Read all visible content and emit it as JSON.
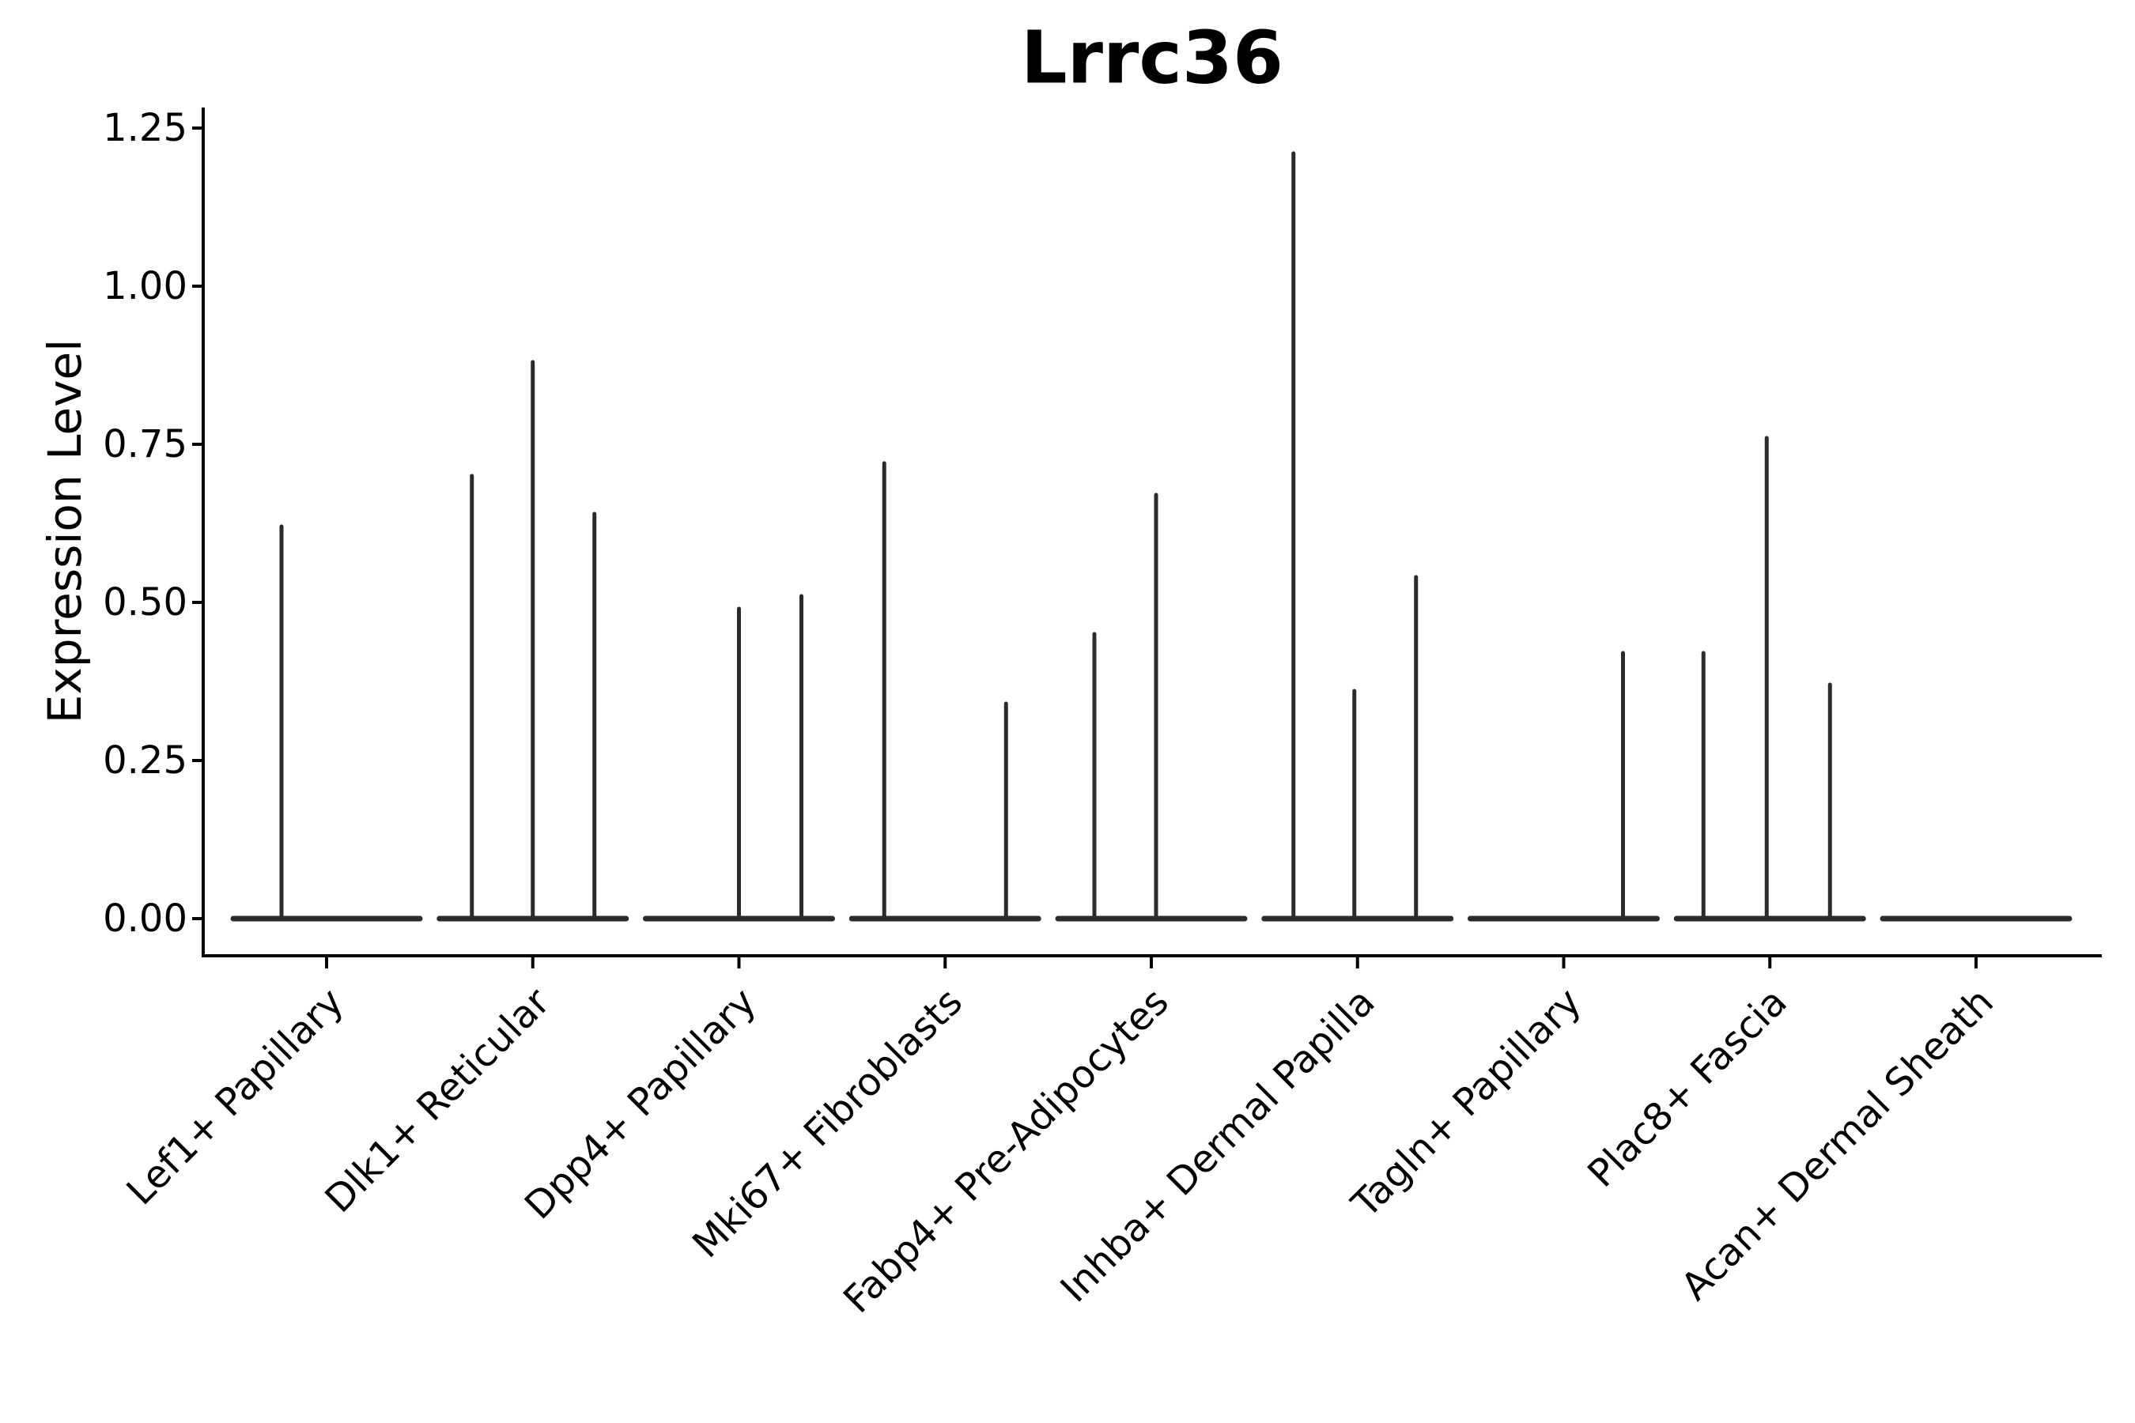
{
  "title": "Lrrc36",
  "y_axis_label": "Expression Level",
  "chart_data": {
    "type": "violin",
    "title": "Lrrc36",
    "xlabel": "",
    "ylabel": "Expression Level",
    "ylim": [
      0,
      1.28
    ],
    "yticks": [
      0.0,
      0.25,
      0.5,
      0.75,
      1.0,
      1.25
    ],
    "ytick_labels": [
      "0.00",
      "0.25",
      "0.50",
      "0.75",
      "1.00",
      "1.25"
    ],
    "grid": false,
    "legend": "none",
    "x_tick_rotation_deg": 45,
    "categories": [
      "Lef1+ Papillary",
      "Dlk1+ Reticular",
      "Dpp4+ Papillary",
      "Mki67+ Fibroblasts",
      "Fabp4+ Pre-Adipocytes",
      "Inhba+ Dermal Papilla",
      "Tagln+ Papillary",
      "Plac8+ Fascia",
      "Acan+ Dermal Sheath"
    ],
    "series": [
      {
        "category": "Lef1+ Papillary",
        "baseline_value": 0,
        "spikes": [
          {
            "offset": -57,
            "value": 0.62
          }
        ]
      },
      {
        "category": "Dlk1+ Reticular",
        "baseline_value": 0,
        "spikes": [
          {
            "offset": -77,
            "value": 0.7
          },
          {
            "offset": 0,
            "value": 0.88
          },
          {
            "offset": 78,
            "value": 0.64
          }
        ]
      },
      {
        "category": "Dpp4+ Papillary",
        "baseline_value": 0,
        "spikes": [
          {
            "offset": 0,
            "value": 0.49
          },
          {
            "offset": 79,
            "value": 0.51
          }
        ]
      },
      {
        "category": "Mki67+ Fibroblasts",
        "baseline_value": 0,
        "spikes": [
          {
            "offset": -77,
            "value": 0.72
          },
          {
            "offset": 77,
            "value": 0.34
          }
        ]
      },
      {
        "category": "Fabp4+ Pre-Adipocytes",
        "baseline_value": 0,
        "spikes": [
          {
            "offset": -72,
            "value": 0.45
          },
          {
            "offset": 6,
            "value": 0.67
          }
        ]
      },
      {
        "category": "Inhba+ Dermal Papilla",
        "baseline_value": 0,
        "spikes": [
          {
            "offset": -81,
            "value": 1.21
          },
          {
            "offset": -4,
            "value": 0.36
          },
          {
            "offset": 74,
            "value": 0.54
          }
        ]
      },
      {
        "category": "Tagln+ Papillary",
        "baseline_value": 0,
        "spikes": [
          {
            "offset": 75,
            "value": 0.42
          }
        ]
      },
      {
        "category": "Plac8+ Fascia",
        "baseline_value": 0,
        "spikes": [
          {
            "offset": -84,
            "value": 0.42
          },
          {
            "offset": -4,
            "value": 0.76
          },
          {
            "offset": 76,
            "value": 0.37
          }
        ]
      },
      {
        "category": "Acan+ Dermal Sheath",
        "baseline_value": 0,
        "spikes": []
      }
    ],
    "colors": {
      "violin": "#2b2b2b",
      "axis": "#000000",
      "text": "#000000",
      "background": "#ffffff"
    }
  }
}
